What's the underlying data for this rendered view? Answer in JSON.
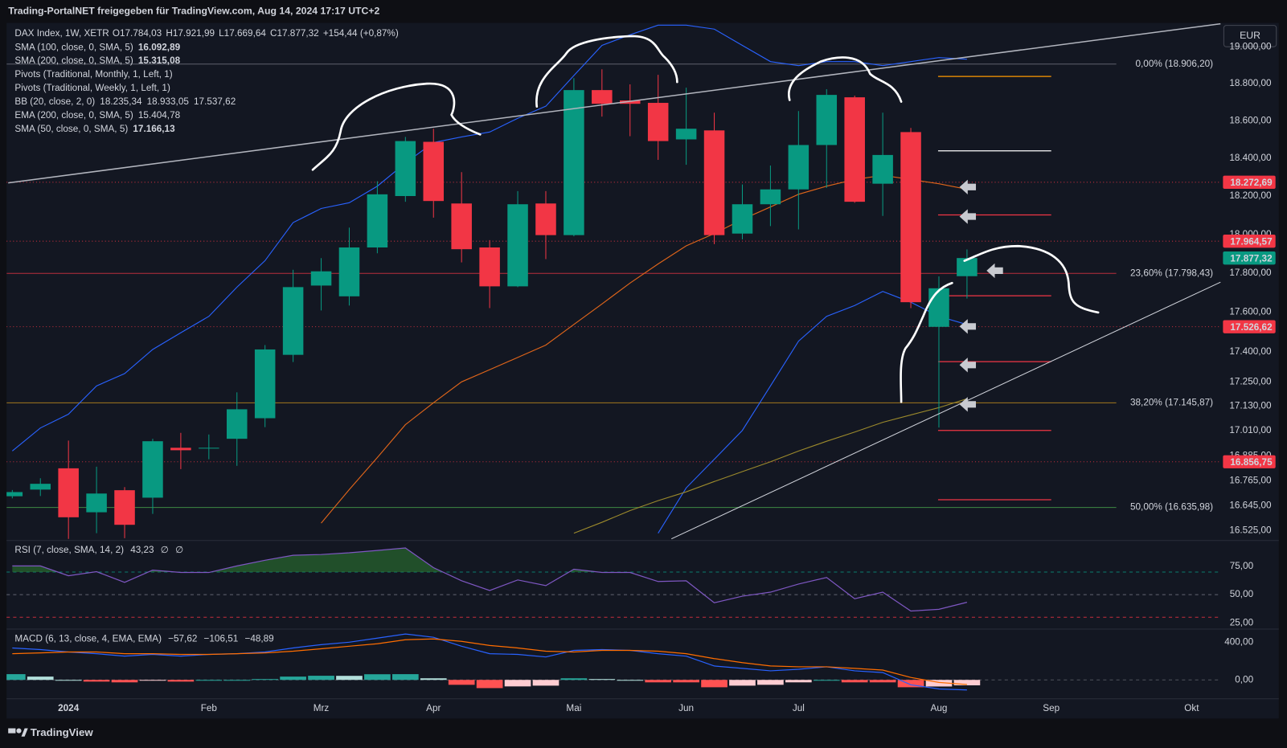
{
  "page": {
    "header": "Trading-PortalNET freigegeben für TradingView.com, Aug 14, 2024 17:17 UTC+2",
    "brand": "TradingView",
    "currency": "EUR"
  },
  "chart_data": {
    "type": "candlestick",
    "log_scale": true,
    "grid": false,
    "up_color": "#089981",
    "down_color": "#f23645",
    "legend": {
      "symbol": "DAX Index, 1W, XETR",
      "ohlc": [
        {
          "key": "O",
          "value": 17784.03,
          "label": "17.784,03"
        },
        {
          "key": "H",
          "value": 17921.99,
          "label": "17.921,99"
        },
        {
          "key": "L",
          "value": 17669.64,
          "label": "17.669,64"
        },
        {
          "key": "C",
          "value": 17877.32,
          "label": "17.877,32"
        }
      ],
      "change": "+154,44 (+0,87%)"
    },
    "indicators": [
      {
        "text": "SMA (100, close, 0, SMA, 5)",
        "values": [
          {
            "value": 16092.89,
            "label": "16.092,89"
          }
        ],
        "colors": [
          "#f5e663"
        ]
      },
      {
        "text": "SMA (200, close, 0, SMA, 5)",
        "values": [
          {
            "value": 15315.08,
            "label": "15.315,08"
          }
        ],
        "colors": [
          "#f5e663"
        ]
      },
      {
        "text": "Pivots (Traditional, Monthly, 1, Left, 1)",
        "values": [],
        "colors": []
      },
      {
        "text": "Pivots (Traditional, Weekly, 1, Left, 1)",
        "values": [],
        "colors": []
      },
      {
        "text": "BB (20, close, 2, 0)",
        "values": [
          {
            "value": 18235.34,
            "label": "18.235,34"
          },
          {
            "value": 18933.05,
            "label": "18.933,05"
          },
          {
            "value": 17537.62,
            "label": "17.537,62"
          }
        ],
        "colors": [
          "#ff9800",
          "#5b8cf6",
          "#5b8cf6"
        ]
      },
      {
        "text": "EMA (200, close, 0, SMA, 5)",
        "values": [
          {
            "value": 15404.78,
            "label": "15.404,78"
          }
        ],
        "colors": [
          "#3f51b5"
        ]
      },
      {
        "text": "SMA (50, close, 0, SMA, 5)",
        "values": [
          {
            "value": 17166.13,
            "label": "17.166,13"
          }
        ],
        "colors": [
          "#f5e663"
        ]
      }
    ],
    "categories": [
      null,
      null,
      "2024",
      null,
      null,
      null,
      null,
      "Feb",
      null,
      null,
      null,
      "Mrz",
      null,
      null,
      null,
      "Apr",
      null,
      null,
      null,
      null,
      "Mai",
      null,
      null,
      null,
      "Jun",
      null,
      null,
      null,
      "Jul",
      null,
      null,
      null,
      null,
      "Aug",
      null,
      null,
      null,
      "Sep",
      null,
      null,
      null,
      null,
      "Okt"
    ],
    "open": [
      16690,
      16722,
      16825,
      16613,
      16719,
      16683,
      16925,
      16921,
      16969,
      17070,
      17385,
      17736,
      17681,
      17932,
      18200,
      18487,
      18161,
      17932,
      17732,
      18161,
      17996,
      18765,
      18709,
      18696,
      18500,
      18548,
      18004,
      18157,
      18235,
      18470,
      18726,
      18265,
      18539,
      17526,
      17784.03,
      null,
      null,
      null,
      null,
      null,
      null,
      null,
      null
    ],
    "high": [
      16720,
      16777,
      16960,
      16833,
      16734,
      16969,
      16998,
      16990,
      17198,
      17434,
      17817,
      17877,
      18035,
      18278,
      18513,
      18557,
      18326,
      17970,
      18226,
      18226,
      18830,
      18878,
      18796,
      18848,
      18778,
      18643,
      18261,
      18361,
      18652,
      18770,
      18735,
      18643,
      18561,
      17783,
      17921.99,
      null,
      null,
      null,
      null,
      null,
      null,
      null,
      null
    ],
    "low": [
      16680,
      16691,
      16485,
      16513,
      16489,
      16605,
      16821,
      16869,
      16837,
      17026,
      17349,
      17609,
      17634,
      17902,
      18170,
      18087,
      17855,
      17621,
      17728,
      17872,
      17990,
      18622,
      18517,
      18391,
      18365,
      17949,
      17974,
      18043,
      18026,
      18243,
      18165,
      18096,
      17621,
      17024,
      17669.64,
      null,
      null,
      null,
      null,
      null,
      null,
      null,
      null
    ],
    "close": [
      16710,
      16750,
      16589,
      16703,
      16553,
      16957,
      16913,
      16925,
      17114,
      17412,
      17728,
      17809,
      17932,
      18209,
      18491,
      18174,
      17923,
      17732,
      18157,
      17996,
      18765,
      18691,
      18691,
      18491,
      18557,
      17996,
      18157,
      18235,
      18470,
      18739,
      18170,
      18417,
      17651,
      17722,
      17877.32,
      null,
      null,
      null,
      null,
      null,
      null,
      null,
      null
    ],
    "overlays": [
      {
        "color": "#2962ff",
        "values": [
          16909,
          17022,
          17090,
          17230,
          17291,
          17412,
          17496,
          17579,
          17728,
          17864,
          18061,
          18135,
          18165,
          18252,
          18374,
          18483,
          18513,
          18539,
          18613,
          18678,
          18844,
          19009,
          19067,
          19120,
          19120,
          19098,
          19009,
          18920,
          18898,
          18920,
          18920,
          18898,
          18920,
          18942,
          18933.05,
          null,
          null,
          null,
          null,
          null,
          null,
          null,
          null
        ]
      },
      {
        "color": "#2962ff",
        "values": [
          null,
          null,
          null,
          null,
          null,
          null,
          null,
          null,
          null,
          null,
          null,
          null,
          null,
          null,
          null,
          null,
          null,
          null,
          null,
          null,
          null,
          null,
          null,
          16513,
          16730,
          16869,
          17010,
          17230,
          17454,
          17579,
          17634,
          17706,
          17651,
          17579,
          17537.62,
          null,
          null,
          null,
          null,
          null,
          null,
          null,
          null
        ]
      },
      {
        "color": "#e0651a",
        "values": [
          null,
          null,
          null,
          null,
          null,
          null,
          null,
          null,
          null,
          null,
          null,
          16561,
          16722,
          16877,
          17038,
          17146,
          17250,
          17311,
          17372,
          17434,
          17538,
          17642,
          17749,
          17847,
          17940,
          18004,
          18078,
          18143,
          18209,
          18252,
          18287,
          18309,
          18287,
          18265,
          18235.34,
          null,
          null,
          null,
          null,
          null,
          null,
          null,
          null
        ]
      },
      {
        "color": "#9c8a2c",
        "values": [
          null,
          null,
          null,
          null,
          null,
          null,
          null,
          null,
          null,
          null,
          null,
          null,
          null,
          null,
          null,
          null,
          null,
          null,
          null,
          null,
          16513,
          16565,
          16621,
          16669,
          16711,
          16761,
          16809,
          16857,
          16909,
          16957,
          17002,
          17050,
          17086,
          17122,
          17166.13,
          null,
          null,
          null,
          null,
          null,
          null,
          null,
          null
        ]
      }
    ],
    "ylim": [
      16486,
      19132
    ],
    "yticks": [
      {
        "value": 19000,
        "label": "19.000,00"
      },
      {
        "value": 18800,
        "label": "18.800,00"
      },
      {
        "value": 18600,
        "label": "18.600,00"
      },
      {
        "value": 18400,
        "label": "18.400,00"
      },
      {
        "value": 18200,
        "label": "18.200,00"
      },
      {
        "value": 18000,
        "label": "18.000,00"
      },
      {
        "value": 17800,
        "label": "17.800,00"
      },
      {
        "value": 17600,
        "label": "17.600,00"
      },
      {
        "value": 17400,
        "label": "17.400,00"
      },
      {
        "value": 17250,
        "label": "17.250,00"
      },
      {
        "value": 17130,
        "label": "17.130,00"
      },
      {
        "value": 17010,
        "label": "17.010,00"
      },
      {
        "value": 16885,
        "label": "16.885,00"
      },
      {
        "value": 16765,
        "label": "16.765,00"
      },
      {
        "value": 16645,
        "label": "16.645,00"
      },
      {
        "value": 16525,
        "label": "16.525,00"
      }
    ],
    "fib_levels": [
      {
        "value": 18906.2,
        "label": "0,00% (18.906,20)",
        "color": "#787b86"
      },
      {
        "value": 17798.43,
        "label": "23,60% (17.798,43)",
        "color": "#f23645"
      },
      {
        "value": 17145.87,
        "label": "38,20% (17.145,87)",
        "color": "#d69a1c"
      },
      {
        "value": 16635.98,
        "label": "50,00% (16.635,98)",
        "color": "#4caf50"
      }
    ],
    "pivot_levels": {
      "values": [
        18839,
        18439,
        18101,
        17684,
        17351,
        17010,
        16673
      ],
      "colors": [
        "#ff9800",
        "#ffffff",
        "#f23645",
        "#f23645",
        "#f23645",
        "#f23645",
        "#f23645"
      ]
    },
    "price_tags": [
      {
        "value": 18272.69,
        "label": "18.272,69",
        "color": "#f23645",
        "line": true
      },
      {
        "value": 17964.57,
        "label": "17.964,57",
        "color": "#f23645",
        "line": true
      },
      {
        "value": 17877.32,
        "label": "17.877,32",
        "color": "#089981",
        "line": false
      },
      {
        "value": 17526.62,
        "label": "17.526,62",
        "color": "#f23645",
        "line": true
      },
      {
        "value": 16856.75,
        "label": "16.856,75",
        "color": "#f23645",
        "line": true
      }
    ],
    "rsi": {
      "text": "RSI (7, close, SMA, 14, 2)",
      "value": {
        "value": 43.23,
        "label": "43,23"
      },
      "extras": [
        "∅",
        "∅"
      ],
      "color": "#7e57c2",
      "values": [
        75.4,
        75.4,
        66.7,
        70.3,
        60.9,
        71.7,
        69.6,
        69.6,
        75.4,
        80.4,
        84.8,
        85.5,
        87.0,
        89.1,
        91.3,
        73.9,
        62.3,
        53.6,
        63.0,
        58.0,
        72.5,
        69.6,
        69.6,
        61.6,
        62.3,
        42.8,
        48.6,
        52.2,
        59.4,
        65.2,
        46.4,
        52.2,
        35.5,
        37.0,
        43.23,
        null,
        null,
        null,
        null,
        null,
        null,
        null,
        null
      ],
      "ylim": [
        21,
        95.7
      ],
      "yticks": [
        {
          "value": 75,
          "label": "75,00"
        },
        {
          "value": 50,
          "label": "50,00"
        },
        {
          "value": 25,
          "label": "25,00"
        }
      ],
      "bands": [
        70,
        50,
        30
      ],
      "band_colors": [
        "#089981",
        "#787b86",
        "#f23645"
      ]
    },
    "macd": {
      "text": "MACD (6, 13, close, 4, EMA, EMA)",
      "values": [
        {
          "value": -57.62,
          "label": "−57,62"
        },
        {
          "value": -106.51,
          "label": "−106,51"
        },
        {
          "value": -48.89,
          "label": "−48,89"
        }
      ],
      "value_colors": [
        "#ffcdd2",
        "#2962ff",
        "#ff6d00"
      ],
      "macd": [
        339,
        322,
        296,
        278,
        252,
        270,
        252,
        270,
        278,
        296,
        339,
        374,
        400,
        443,
        487,
        452,
        357,
        278,
        270,
        243,
        313,
        322,
        313,
        278,
        252,
        148,
        122,
        96,
        113,
        139,
        96,
        78,
        -52,
        -96,
        -106.51,
        null,
        null,
        null,
        null,
        null,
        null,
        null,
        null
      ],
      "signal": [
        278,
        287,
        296,
        296,
        278,
        278,
        270,
        270,
        278,
        287,
        304,
        330,
        357,
        383,
        426,
        435,
        409,
        365,
        339,
        304,
        296,
        313,
        313,
        304,
        278,
        226,
        183,
        148,
        139,
        139,
        122,
        104,
        26,
        -26,
        -48.89,
        null,
        null,
        null,
        null,
        null,
        null,
        null,
        null
      ],
      "histogram": [
        61,
        35,
        0,
        -18,
        -26,
        -8,
        -18,
        0,
        0,
        9,
        35,
        44,
        43,
        60,
        61,
        17,
        -52,
        -87,
        -69,
        -61,
        17,
        9,
        0,
        -26,
        -26,
        -78,
        -61,
        -52,
        -26,
        0,
        -26,
        -26,
        -78,
        -70,
        -57.62,
        null,
        null,
        null,
        null,
        null,
        null,
        null,
        null
      ],
      "macd_color": "#2962ff",
      "signal_color": "#ff6d00",
      "ylim": [
        -183,
        513
      ],
      "yticks": [
        {
          "value": 400,
          "label": "400,00"
        },
        {
          "value": 0,
          "label": "0,00"
        }
      ]
    }
  }
}
